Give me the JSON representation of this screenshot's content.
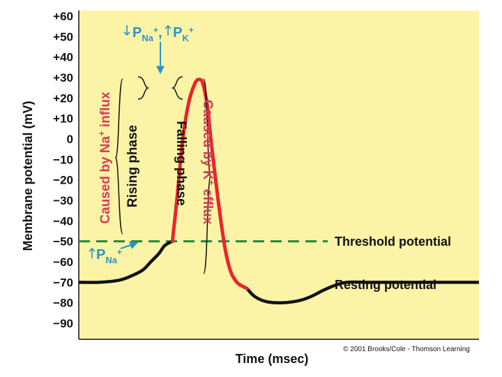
{
  "colors": {
    "plot_background": "#fbf4a6",
    "trace": "#111111",
    "action_potential": "#e8262a",
    "threshold": "#1e8a3a",
    "annotation": "#2a93c9",
    "cause_text": "#d63a5a",
    "bracket": "#111111"
  },
  "chart_data": {
    "type": "line",
    "title": "",
    "xlabel": "Time (msec)",
    "ylabel": "Membrane potential (mV)",
    "ylim": [
      -95,
      65
    ],
    "yticks": [
      60,
      50,
      40,
      30,
      20,
      10,
      0,
      -10,
      -20,
      -30,
      -40,
      -50,
      -60,
      -70,
      -80,
      -90
    ],
    "ytick_labels": [
      "+60",
      "+50",
      "+40",
      "+30",
      "+20",
      "+10",
      "0",
      "−10",
      "−20",
      "−30",
      "−40",
      "−50",
      "−60",
      "−70",
      "−80",
      "−90"
    ],
    "x_unit_note": "time axis unlabeled (arbitrary units 0-100)",
    "series": [
      {
        "name": "Resting / depolarization (black)",
        "x": [
          0,
          5,
          10,
          13,
          16,
          18,
          20,
          21.5,
          23.4
        ],
        "y": [
          -70,
          -70,
          -69,
          -67,
          -64,
          -60,
          -56,
          -52,
          -50
        ]
      },
      {
        "name": "Action potential (red)",
        "x": [
          23.4,
          24.5,
          26,
          27.5,
          29,
          30,
          31,
          32.2,
          33,
          34.2,
          35.5,
          36.7,
          38,
          39.5,
          41,
          42
        ],
        "y": [
          -50,
          -30,
          0,
          18,
          27,
          29,
          27,
          15,
          0,
          -20,
          -40,
          -55,
          -65,
          -70,
          -72,
          -73
        ]
      },
      {
        "name": "Hyperpolarization and return (black)",
        "x": [
          42,
          44,
          47,
          51,
          55,
          58,
          61,
          64,
          67,
          72,
          80,
          90,
          100
        ],
        "y": [
          -73,
          -77,
          -79.5,
          -80,
          -79,
          -77,
          -74,
          -71.5,
          -70,
          -70,
          -70,
          -70,
          -70
        ]
      }
    ],
    "threshold": {
      "value": -50,
      "label": "Threshold potential"
    },
    "resting": {
      "value": -70,
      "label": "Resting potential"
    },
    "annotations": {
      "peak_permeability": {
        "parts": [
          "P",
          "Na",
          "+",
          ", ",
          "P",
          "K",
          "+"
        ],
        "at": {
          "x": 30.5,
          "y": 29
        }
      },
      "initial_permeability": {
        "parts": [
          "P",
          "Na",
          "+"
        ],
        "at": {
          "x": 23.4,
          "y": -50
        }
      },
      "rising_phase": "Rising phase",
      "falling_phase": "Falling phase",
      "rising_cause": {
        "parts": [
          "Caused by Na",
          "+",
          " influx"
        ]
      },
      "falling_cause": {
        "parts": [
          "Caused by K",
          "+",
          " efflux"
        ]
      }
    }
  },
  "copyright": "© 2001 Brooks/Cole - Thomson Learning"
}
